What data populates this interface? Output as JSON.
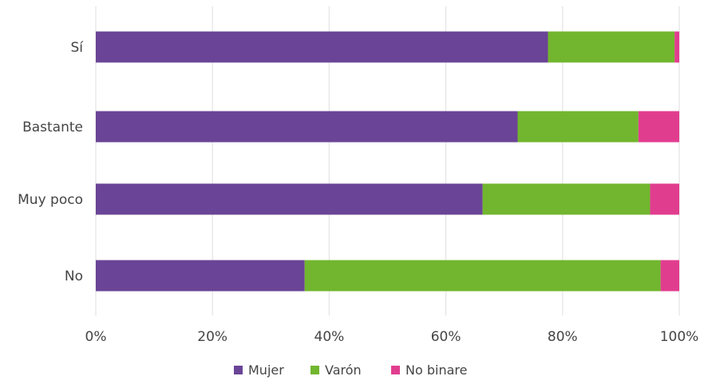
{
  "chart_data": {
    "type": "bar",
    "orientation": "horizontal",
    "stacked": true,
    "percent_stacked": true,
    "title": "",
    "categories": [
      "Sí",
      "Bastante",
      "Muy poco",
      "No"
    ],
    "series": [
      {
        "name": "Mujer",
        "color": "#6a4496",
        "values": [
          77.5,
          72.3,
          66.3,
          35.8
        ]
      },
      {
        "name": "Varón",
        "color": "#71b62e",
        "values": [
          21.7,
          20.7,
          28.7,
          61.0
        ]
      },
      {
        "name": "No binare",
        "color": "#e13d8f",
        "values": [
          0.8,
          7.0,
          5.0,
          3.2
        ]
      }
    ],
    "xlim": [
      0,
      100
    ],
    "x_ticks": [
      "0%",
      "20%",
      "40%",
      "60%",
      "80%",
      "100%"
    ],
    "grid": "vertical",
    "legend_position": "bottom"
  }
}
